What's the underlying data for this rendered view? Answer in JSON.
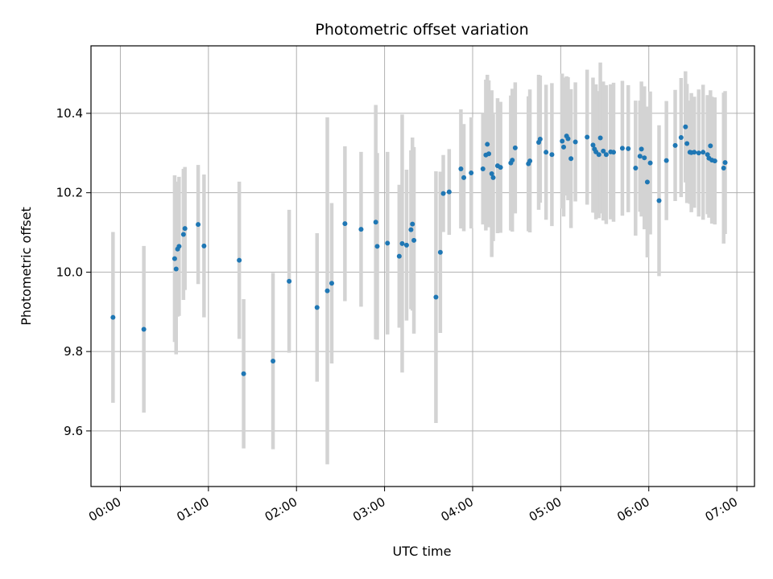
{
  "chart_data": {
    "type": "scatter",
    "title": "Photometric offset variation",
    "xlabel": "UTC time",
    "ylabel": "Photometric offset",
    "x_unit": "time of day (HH:MM, UTC)",
    "xlim": [
      "23:40",
      "07:12"
    ],
    "ylim": [
      9.46,
      10.57
    ],
    "xticks": [
      "00:00",
      "01:00",
      "02:00",
      "03:00",
      "04:00",
      "05:00",
      "06:00",
      "07:00"
    ],
    "yticks": [
      9.6,
      9.8,
      10.0,
      10.2,
      10.4
    ],
    "ytick_labels": [
      "9.6",
      "9.8",
      "10.0",
      "10.2",
      "10.4"
    ],
    "grid": true,
    "legend": false,
    "colors": {
      "point": "#1f77b4",
      "errorbar": "#d3d3d3",
      "grid": "#b0b0b0"
    },
    "series": [
      {
        "x": [
          "23:55",
          "00:16",
          "00:37",
          "00:38",
          "00:39",
          "00:40",
          "00:43",
          "00:44",
          "00:53",
          "00:57",
          "01:21",
          "01:24",
          "01:44",
          "01:55",
          "02:14",
          "02:21",
          "02:24",
          "02:33",
          "02:44",
          "02:54",
          "02:55",
          "03:02",
          "03:10",
          "03:12",
          "03:15",
          "03:18",
          "03:19",
          "03:20",
          "03:35",
          "03:38",
          "03:40",
          "03:44",
          "03:52",
          "03:54",
          "03:59",
          "04:07",
          "04:09",
          "04:10",
          "04:11",
          "04:13",
          "04:14",
          "04:17",
          "04:19",
          "04:26",
          "04:27",
          "04:29",
          "04:38",
          "04:39",
          "04:45",
          "04:46",
          "04:50",
          "04:54",
          "05:01",
          "05:02",
          "05:04",
          "05:05",
          "05:07",
          "05:10",
          "05:18",
          "05:22",
          "05:23",
          "05:24",
          "05:26",
          "05:27",
          "05:29",
          "05:31",
          "05:34",
          "05:36",
          "05:42",
          "05:46",
          "05:51",
          "05:54",
          "05:55",
          "05:57",
          "05:59",
          "06:01",
          "06:07",
          "06:12",
          "06:18",
          "06:22",
          "06:25",
          "06:26",
          "06:28",
          "06:29",
          "06:31",
          "06:34",
          "06:37",
          "06:40",
          "06:41",
          "06:42",
          "06:43",
          "06:45",
          "06:51",
          "06:52"
        ],
        "y": [
          9.886,
          9.856,
          10.034,
          10.008,
          10.058,
          10.065,
          10.095,
          10.11,
          10.12,
          10.066,
          10.03,
          9.744,
          9.776,
          9.977,
          9.911,
          9.953,
          9.972,
          10.122,
          10.108,
          10.126,
          10.065,
          10.073,
          10.04,
          10.072,
          10.068,
          10.107,
          10.121,
          10.08,
          9.937,
          10.05,
          10.198,
          10.202,
          10.26,
          10.238,
          10.25,
          10.26,
          10.295,
          10.322,
          10.298,
          10.248,
          10.238,
          10.268,
          10.264,
          10.275,
          10.282,
          10.313,
          10.273,
          10.28,
          10.327,
          10.335,
          10.302,
          10.296,
          10.33,
          10.315,
          10.343,
          10.336,
          10.286,
          10.328,
          10.34,
          10.32,
          10.31,
          10.303,
          10.296,
          10.338,
          10.305,
          10.296,
          10.303,
          10.302,
          10.312,
          10.311,
          10.262,
          10.292,
          10.31,
          10.288,
          10.227,
          10.275,
          10.18,
          10.281,
          10.319,
          10.339,
          10.366,
          10.324,
          10.302,
          10.301,
          10.302,
          10.3,
          10.302,
          10.296,
          10.287,
          10.318,
          10.282,
          10.28,
          10.262,
          10.276
        ],
        "yerr": [
          0.215,
          0.21,
          0.21,
          0.215,
          0.17,
          0.175,
          0.165,
          0.155,
          0.15,
          0.18,
          0.198,
          0.188,
          0.222,
          0.18,
          0.187,
          0.437,
          0.202,
          0.195,
          0.195,
          0.295,
          0.235,
          0.23,
          0.18,
          0.325,
          0.19,
          0.2,
          0.218,
          0.235,
          0.317,
          0.203,
          0.097,
          0.108,
          0.15,
          0.135,
          0.14,
          0.14,
          0.19,
          0.175,
          0.185,
          0.21,
          0.16,
          0.17,
          0.165,
          0.17,
          0.18,
          0.165,
          0.17,
          0.18,
          0.17,
          0.16,
          0.17,
          0.18,
          0.17,
          0.175,
          0.15,
          0.155,
          0.175,
          0.15,
          0.17,
          0.17,
          0.16,
          0.17,
          0.16,
          0.19,
          0.175,
          0.175,
          0.17,
          0.175,
          0.17,
          0.16,
          0.17,
          0.14,
          0.17,
          0.18,
          0.19,
          0.18,
          0.19,
          0.15,
          0.14,
          0.15,
          0.14,
          0.15,
          0.13,
          0.15,
          0.14,
          0.16,
          0.17,
          0.15,
          0.15,
          0.14,
          0.16,
          0.16,
          0.19,
          0.18
        ]
      }
    ]
  }
}
